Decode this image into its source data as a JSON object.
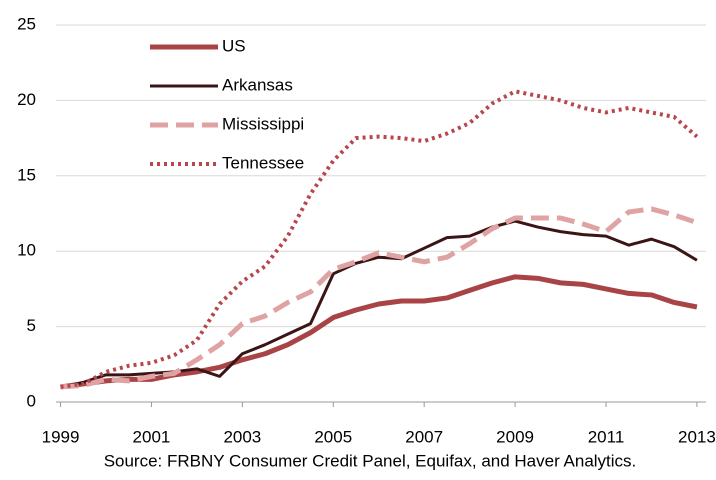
{
  "chart_data": {
    "type": "line",
    "source": "Source: FRBNY Consumer Credit Panel, Equifax, and Haver Analytics.",
    "x": [
      1999,
      1999.5,
      2000,
      2000.5,
      2001,
      2001.5,
      2002,
      2002.5,
      2003,
      2003.5,
      2004,
      2004.5,
      2005,
      2005.5,
      2006,
      2006.5,
      2007,
      2007.5,
      2008,
      2008.5,
      2009,
      2009.5,
      2010,
      2010.5,
      2011,
      2011.5,
      2012,
      2012.5,
      2013
    ],
    "series": [
      {
        "name": "US",
        "color": "#a84446",
        "dash": "solid",
        "width": 5,
        "values": [
          1.0,
          1.2,
          1.4,
          1.5,
          1.5,
          1.8,
          2.0,
          2.3,
          2.8,
          3.2,
          3.8,
          4.6,
          5.6,
          6.1,
          6.5,
          6.7,
          6.7,
          6.9,
          7.4,
          7.9,
          8.3,
          8.2,
          7.9,
          7.8,
          7.5,
          7.2,
          7.1,
          6.6,
          6.3
        ]
      },
      {
        "name": "Arkansas",
        "color": "#3b1416",
        "dash": "solid",
        "width": 3,
        "values": [
          1.0,
          1.3,
          1.8,
          1.8,
          1.9,
          2.0,
          2.2,
          1.7,
          3.2,
          3.8,
          4.5,
          5.2,
          8.5,
          9.2,
          9.6,
          9.5,
          10.2,
          10.9,
          11.0,
          11.6,
          12.0,
          11.6,
          11.3,
          11.1,
          11.0,
          10.4,
          10.8,
          10.3,
          9.4
        ]
      },
      {
        "name": "Mississippi",
        "color": "#e0a3a3",
        "dash": "dashed",
        "width": 5,
        "values": [
          1.0,
          1.1,
          1.5,
          1.4,
          1.7,
          1.9,
          2.8,
          3.8,
          5.2,
          5.7,
          6.6,
          7.3,
          8.8,
          9.3,
          9.9,
          9.6,
          9.3,
          9.6,
          10.5,
          11.5,
          12.2,
          12.2,
          12.2,
          11.8,
          11.3,
          12.6,
          12.8,
          12.4,
          11.9
        ]
      },
      {
        "name": "Tennessee",
        "color": "#b8474c",
        "dash": "dotted",
        "width": 4,
        "values": [
          1.0,
          1.2,
          2.0,
          2.4,
          2.6,
          3.1,
          4.1,
          6.5,
          8.0,
          9.0,
          11.0,
          13.8,
          16.0,
          17.5,
          17.6,
          17.5,
          17.3,
          17.8,
          18.5,
          19.8,
          20.6,
          20.3,
          20.0,
          19.5,
          19.2,
          19.5,
          19.2,
          18.9,
          17.6
        ]
      }
    ],
    "xlim": [
      1998.9,
      2013.2
    ],
    "xticks": [
      1999,
      2001,
      2003,
      2005,
      2007,
      2009,
      2011,
      2013
    ],
    "ylim": [
      0,
      25
    ],
    "yticks": [
      0,
      5,
      10,
      15,
      20,
      25
    ],
    "grid": true,
    "legend": "upper-left"
  }
}
